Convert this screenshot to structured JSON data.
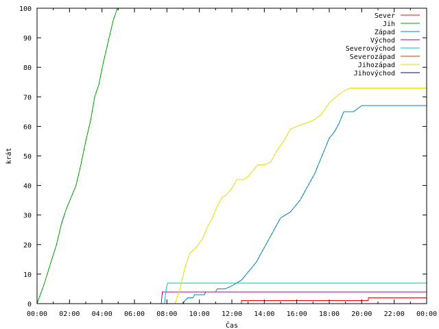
{
  "chart_data": {
    "type": "line",
    "title": "",
    "xlabel": "Čas",
    "ylabel": "krát",
    "xlim_hours": [
      0,
      24
    ],
    "ylim": [
      0,
      100
    ],
    "x_ticks": [
      "00:00",
      "02:00",
      "04:00",
      "06:00",
      "08:00",
      "10:00",
      "12:00",
      "14:00",
      "16:00",
      "18:00",
      "20:00",
      "22:00",
      "00:00"
    ],
    "y_ticks": [
      0,
      10,
      20,
      30,
      40,
      50,
      60,
      70,
      80,
      90,
      100
    ],
    "grid": false,
    "legend_position": "top-right",
    "series": [
      {
        "name": "Sever",
        "color": "#ff0000",
        "points": [
          [
            0,
            0
          ],
          [
            12.6,
            0
          ],
          [
            12.6,
            1
          ],
          [
            20.4,
            1
          ],
          [
            20.4,
            2
          ],
          [
            24,
            2
          ]
        ]
      },
      {
        "name": "Jih",
        "color": "#00a000",
        "points": [
          [
            0,
            0
          ],
          [
            0.4,
            6
          ],
          [
            0.8,
            13
          ],
          [
            1.2,
            20
          ],
          [
            1.5,
            27
          ],
          [
            1.8,
            32
          ],
          [
            2.1,
            36
          ],
          [
            2.4,
            40
          ],
          [
            2.7,
            47
          ],
          [
            3.0,
            55
          ],
          [
            3.3,
            62
          ],
          [
            3.55,
            70
          ],
          [
            3.8,
            74
          ],
          [
            4.1,
            82
          ],
          [
            4.4,
            89
          ],
          [
            4.7,
            96
          ],
          [
            4.95,
            100
          ]
        ]
      },
      {
        "name": "Západ",
        "color": "#0080c0",
        "points": [
          [
            0,
            0
          ],
          [
            9.0,
            0
          ],
          [
            9.1,
            1
          ],
          [
            9.3,
            2
          ],
          [
            9.6,
            2
          ],
          [
            9.7,
            3
          ],
          [
            10.3,
            3
          ],
          [
            10.4,
            4
          ],
          [
            11.0,
            4
          ],
          [
            11.1,
            5
          ],
          [
            11.6,
            5
          ],
          [
            12.0,
            6
          ],
          [
            12.3,
            7
          ],
          [
            12.6,
            8
          ],
          [
            12.9,
            10
          ],
          [
            13.2,
            12
          ],
          [
            13.5,
            14
          ],
          [
            13.8,
            17
          ],
          [
            14.1,
            20
          ],
          [
            14.4,
            23
          ],
          [
            14.7,
            26
          ],
          [
            15.0,
            29
          ],
          [
            15.3,
            30
          ],
          [
            15.6,
            31
          ],
          [
            15.9,
            33
          ],
          [
            16.2,
            35
          ],
          [
            16.5,
            38
          ],
          [
            16.8,
            41
          ],
          [
            17.1,
            44
          ],
          [
            17.4,
            48
          ],
          [
            17.7,
            52
          ],
          [
            18.0,
            56
          ],
          [
            18.3,
            58
          ],
          [
            18.6,
            61
          ],
          [
            18.9,
            65
          ],
          [
            19.2,
            65
          ],
          [
            19.5,
            65
          ],
          [
            20.0,
            67
          ],
          [
            24,
            67
          ]
        ]
      },
      {
        "name": "Východ",
        "color": "#a000a0",
        "points": [
          [
            0,
            0
          ],
          [
            7.65,
            0
          ],
          [
            7.72,
            4
          ],
          [
            24,
            4
          ]
        ]
      },
      {
        "name": "Severovýchod",
        "color": "#00c0c0",
        "points": [
          [
            0,
            0
          ],
          [
            7.85,
            0
          ],
          [
            7.95,
            5
          ],
          [
            8.05,
            7
          ],
          [
            24,
            7
          ]
        ]
      },
      {
        "name": "Severozápad",
        "color": "#c04000",
        "points": [
          [
            0,
            0
          ],
          [
            24,
            0
          ]
        ]
      },
      {
        "name": "Jihozápad",
        "color": "#e0e000",
        "points": [
          [
            0,
            0
          ],
          [
            8.5,
            0
          ],
          [
            8.8,
            5
          ],
          [
            9.1,
            12
          ],
          [
            9.4,
            17
          ],
          [
            9.8,
            19
          ],
          [
            10.2,
            22
          ],
          [
            10.5,
            26
          ],
          [
            10.8,
            29
          ],
          [
            11.1,
            33
          ],
          [
            11.4,
            36
          ],
          [
            11.7,
            37
          ],
          [
            12.0,
            39
          ],
          [
            12.3,
            42
          ],
          [
            12.7,
            42
          ],
          [
            13.0,
            43
          ],
          [
            13.3,
            45
          ],
          [
            13.6,
            47
          ],
          [
            14.0,
            47
          ],
          [
            14.4,
            48
          ],
          [
            14.8,
            52
          ],
          [
            15.2,
            55
          ],
          [
            15.6,
            59
          ],
          [
            16.0,
            60
          ],
          [
            16.5,
            61
          ],
          [
            17.0,
            62
          ],
          [
            17.5,
            64
          ],
          [
            18.0,
            68
          ],
          [
            18.4,
            70
          ],
          [
            18.9,
            72
          ],
          [
            19.3,
            73
          ],
          [
            24,
            73
          ]
        ]
      },
      {
        "name": "Jihovýchod",
        "color": "#000080",
        "points": [
          [
            0,
            0
          ],
          [
            24,
            0
          ]
        ]
      }
    ]
  }
}
